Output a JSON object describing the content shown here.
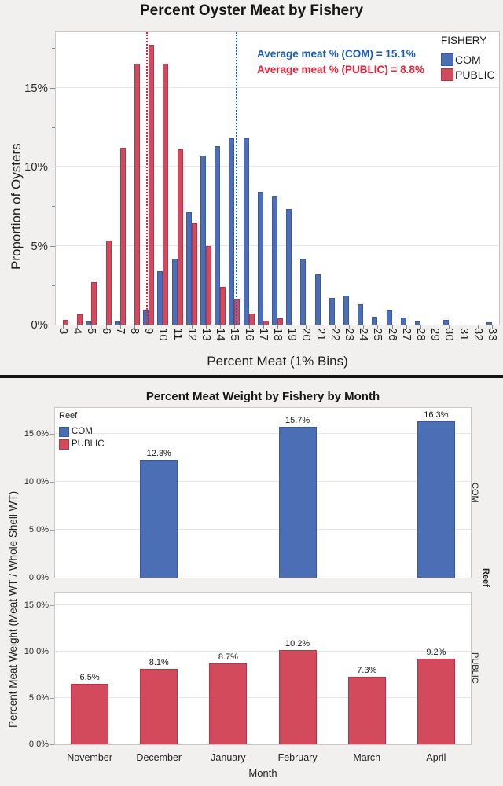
{
  "page": {
    "background": "#f1f0ee"
  },
  "chart_data": [
    {
      "type": "bar",
      "variant": "paired-histogram",
      "title": "Percent Oyster Meat by Fishery",
      "xlabel": "Percent Meat (1% Bins)",
      "ylabel": "Proportion of Oysters",
      "x_bins": [
        3,
        4,
        5,
        6,
        7,
        8,
        9,
        10,
        11,
        12,
        13,
        14,
        15,
        16,
        17,
        18,
        19,
        20,
        21,
        22,
        23,
        24,
        25,
        26,
        27,
        28,
        29,
        30,
        31,
        32,
        33
      ],
      "ylim": [
        0,
        18.5
      ],
      "yticks": [
        {
          "v": 0,
          "label": "0%"
        },
        {
          "v": 5,
          "label": "5%"
        },
        {
          "v": 10,
          "label": "10%"
        },
        {
          "v": 15,
          "label": "15%"
        }
      ],
      "yticks_minor": [
        2.5,
        7.5,
        12.5,
        17.5
      ],
      "grid": "horizontal",
      "legend": {
        "title": "FISHERY",
        "position": "top-right"
      },
      "series": [
        {
          "name": "COM",
          "color": "#4c6eb5",
          "border": "#3a57a0",
          "values": [
            0,
            0,
            0.2,
            0,
            0.2,
            0,
            0.9,
            3.4,
            4.2,
            7.1,
            10.7,
            11.3,
            11.8,
            11.8,
            8.4,
            8.1,
            7.3,
            4.2,
            3.2,
            1.7,
            1.85,
            1.3,
            0.5,
            0.9,
            0.45,
            0.2,
            0,
            0.3,
            0,
            0,
            0.15
          ]
        },
        {
          "name": "PUBLIC",
          "color": "#d44a5d",
          "border": "#b5344a",
          "values": [
            0.3,
            0.65,
            2.7,
            5.3,
            11.2,
            16.5,
            17.7,
            16.5,
            11.1,
            6.4,
            5.0,
            2.4,
            1.6,
            0.7,
            0.25,
            0.4,
            0,
            0,
            0,
            0,
            0,
            0,
            0,
            0,
            0,
            0,
            0,
            0,
            0,
            0,
            0
          ]
        }
      ],
      "ref_lines": [
        {
          "value": 15.1,
          "series": "COM",
          "color": "#1c5cb5"
        },
        {
          "value": 8.8,
          "series": "PUBLIC",
          "color": "#ec1f39"
        }
      ],
      "annotations": [
        {
          "text": "Average meat % (COM) = 15.1%",
          "color": "#1c5cb5"
        },
        {
          "text": "Average meat % (PUBLIC) = 8.8%",
          "color": "#ec1f39"
        }
      ]
    },
    {
      "type": "bar",
      "variant": "paneled-by-group",
      "title": "Percent Meat Weight by Fishery by Month",
      "xlabel": "Month",
      "ylabel": "Percent Meat Weight (Meat WT / Whole Shell WT)",
      "strip_title": "Reef",
      "categories": [
        "November",
        "December",
        "January",
        "February",
        "March",
        "April"
      ],
      "yticks": [
        {
          "v": 0,
          "label": "0.0%"
        },
        {
          "v": 5,
          "label": "5.0%"
        },
        {
          "v": 10,
          "label": "10.0%"
        },
        {
          "v": 15,
          "label": "15.0%"
        }
      ],
      "legend": {
        "title": "Reef",
        "position": "top-left"
      },
      "panels": [
        {
          "name": "COM",
          "color": "#4c6eb5",
          "border": "#3a57a0",
          "values": [
            null,
            12.3,
            null,
            15.7,
            null,
            16.3
          ],
          "bar_labels": [
            "",
            "12.3%",
            "",
            "15.7%",
            "",
            "16.3%"
          ]
        },
        {
          "name": "PUBLIC",
          "color": "#d44a5d",
          "border": "#b5344a",
          "values": [
            6.5,
            8.1,
            8.7,
            10.2,
            7.3,
            9.2
          ],
          "bar_labels": [
            "6.5%",
            "8.1%",
            "8.7%",
            "10.2%",
            "7.3%",
            "9.2%"
          ]
        }
      ]
    }
  ]
}
